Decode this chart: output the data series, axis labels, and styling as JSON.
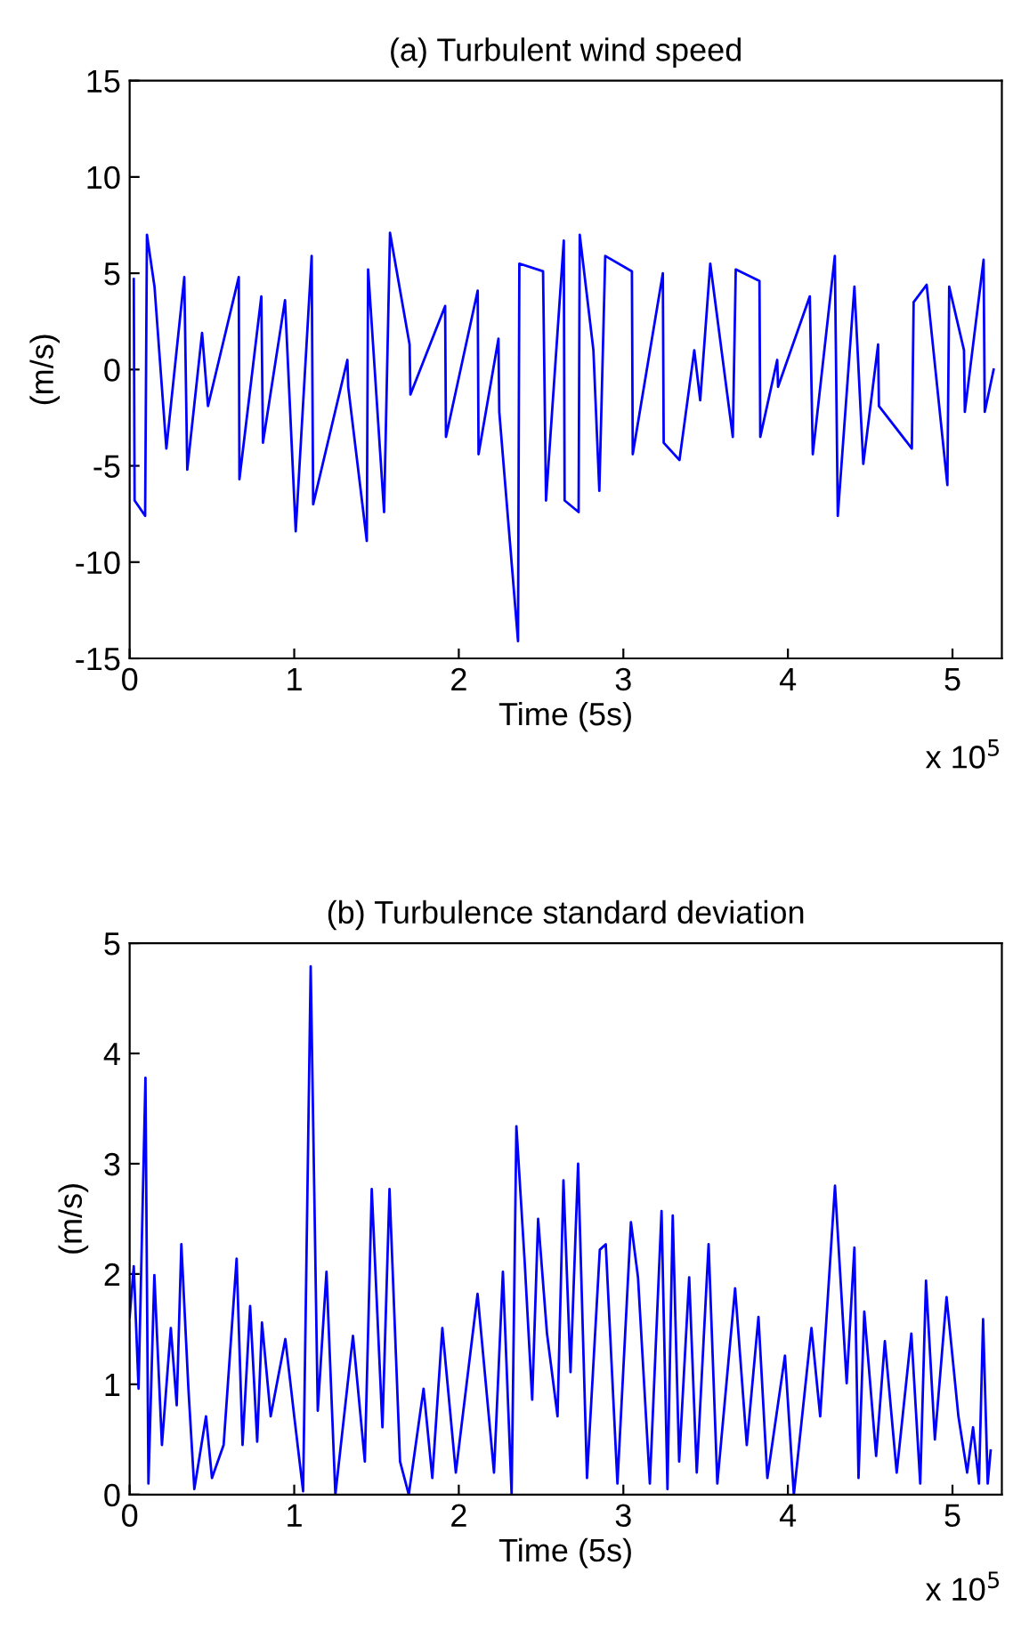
{
  "chart_data": [
    {
      "type": "line",
      "title": "(a) Turbulent wind speed",
      "xlabel": "Time (5s)",
      "ylabel": "(m/s)",
      "annotations": [
        "x 10$^{5}$"
      ],
      "xlim": [
        0,
        5.3
      ],
      "xticks": [
        0,
        1,
        2,
        3,
        4,
        5
      ],
      "ylim": [
        -15,
        15
      ],
      "yticks": [
        -15,
        -10,
        -5,
        0,
        5,
        10,
        15
      ],
      "grid": false,
      "legend": false,
      "series": [
        {
          "color": "#0000ff",
          "x": [
            0.025,
            0.03,
            0.094,
            0.105,
            0.151,
            0.223,
            0.332,
            0.35,
            0.44,
            0.476,
            0.663,
            0.667,
            0.8,
            0.81,
            0.944,
            1.009,
            1.106,
            1.115,
            1.323,
            1.328,
            1.441,
            1.449,
            1.546,
            1.582,
            1.701,
            1.706,
            1.917,
            1.922,
            2.115,
            2.12,
            2.241,
            2.246,
            2.36,
            2.368,
            2.512,
            2.53,
            2.638,
            2.643,
            2.728,
            2.735,
            2.818,
            2.854,
            2.89,
            3.052,
            3.057,
            3.24,
            3.245,
            3.341,
            3.431,
            3.467,
            3.528,
            3.665,
            3.683,
            3.827,
            3.832,
            3.935,
            3.94,
            4.133,
            4.151,
            4.285,
            4.303,
            4.404,
            4.458,
            4.548,
            4.553,
            4.753,
            4.764,
            4.843,
            4.969,
            4.98,
            5.07,
            5.075,
            5.189,
            5.196,
            5.25
          ],
          "values": [
            4.7,
            -6.8,
            -7.6,
            7.0,
            4.3,
            -4.1,
            4.8,
            -5.2,
            1.9,
            -1.9,
            4.8,
            -5.7,
            3.8,
            -3.8,
            3.6,
            -8.4,
            5.9,
            -7.0,
            0.5,
            -0.9,
            -8.9,
            5.2,
            -7.4,
            7.1,
            1.3,
            -1.3,
            3.3,
            -3.5,
            4.1,
            -4.4,
            1.6,
            -2.2,
            -14.1,
            5.5,
            5.1,
            -6.8,
            6.7,
            -6.8,
            -7.4,
            7.0,
            1.0,
            -6.3,
            5.9,
            5.1,
            -4.4,
            5.0,
            -3.8,
            -4.7,
            1.0,
            -1.6,
            5.5,
            -3.5,
            5.2,
            4.6,
            -3.5,
            0.5,
            -0.9,
            3.8,
            -4.4,
            5.9,
            -7.6,
            4.3,
            -4.9,
            1.3,
            -1.9,
            -4.1,
            3.5,
            4.4,
            -6.0,
            4.3,
            1.0,
            -2.2,
            5.7,
            -2.2,
            0.0
          ]
        }
      ]
    },
    {
      "type": "line",
      "title": "(b) Turbulence standard deviation",
      "xlabel": "Time (5s)",
      "ylabel": "(m/s)",
      "annotations": [
        "x 10$^{5}$"
      ],
      "xlim": [
        0,
        5.3
      ],
      "xticks": [
        0,
        1,
        2,
        3,
        4,
        5
      ],
      "ylim": [
        0,
        5
      ],
      "yticks": [
        0,
        1,
        2,
        3,
        4,
        5
      ],
      "grid": false,
      "legend": false,
      "series": [
        {
          "color": "#0000ff",
          "x": [
            0,
            0.025,
            0.054,
            0.096,
            0.114,
            0.15,
            0.196,
            0.25,
            0.286,
            0.314,
            0.357,
            0.393,
            0.464,
            0.5,
            0.571,
            0.65,
            0.686,
            0.732,
            0.775,
            0.804,
            0.857,
            0.946,
            1.0,
            1.054,
            1.1,
            1.143,
            1.196,
            1.25,
            1.357,
            1.429,
            1.471,
            1.536,
            1.579,
            1.643,
            1.696,
            1.786,
            1.839,
            1.9,
            1.982,
            2.114,
            2.214,
            2.268,
            2.321,
            2.35,
            2.4,
            2.446,
            2.482,
            2.536,
            2.6,
            2.636,
            2.679,
            2.725,
            2.779,
            2.857,
            2.893,
            2.964,
            3.046,
            3.089,
            3.161,
            3.232,
            3.268,
            3.3,
            3.339,
            3.4,
            3.446,
            3.518,
            3.571,
            3.679,
            3.75,
            3.821,
            3.875,
            3.982,
            4.036,
            4.143,
            4.196,
            4.286,
            4.357,
            4.404,
            4.429,
            4.464,
            4.536,
            4.589,
            4.661,
            4.75,
            4.804,
            4.839,
            4.893,
            4.964,
            5.036,
            5.089,
            5.125,
            5.161,
            5.186,
            5.214,
            5.232
          ],
          "values": [
            1.61,
            2.07,
            0.96,
            3.78,
            0.1,
            1.99,
            0.45,
            1.51,
            0.81,
            2.27,
            0.96,
            0.05,
            0.71,
            0.15,
            0.45,
            2.14,
            0.45,
            1.71,
            0.48,
            1.56,
            0.71,
            1.41,
            0.71,
            0.03,
            4.79,
            0.76,
            2.02,
            0.0,
            1.44,
            0.3,
            2.77,
            0.61,
            2.77,
            0.3,
            0.0,
            0.96,
            0.15,
            1.51,
            0.2,
            1.82,
            0.2,
            2.02,
            0.0,
            3.34,
            2.12,
            0.86,
            2.5,
            1.46,
            0.71,
            2.85,
            1.11,
            3.0,
            0.15,
            2.22,
            2.27,
            0.1,
            2.47,
            1.97,
            0.1,
            2.57,
            0.05,
            2.53,
            0.3,
            1.97,
            0.2,
            2.27,
            0.1,
            1.87,
            0.45,
            1.61,
            0.15,
            1.26,
            0.0,
            1.51,
            0.71,
            2.8,
            1.01,
            2.24,
            0.15,
            1.66,
            0.35,
            1.39,
            0.2,
            1.46,
            0.1,
            1.94,
            0.5,
            1.79,
            0.71,
            0.2,
            0.61,
            0.1,
            1.59,
            0.1,
            0.4
          ]
        }
      ]
    }
  ]
}
